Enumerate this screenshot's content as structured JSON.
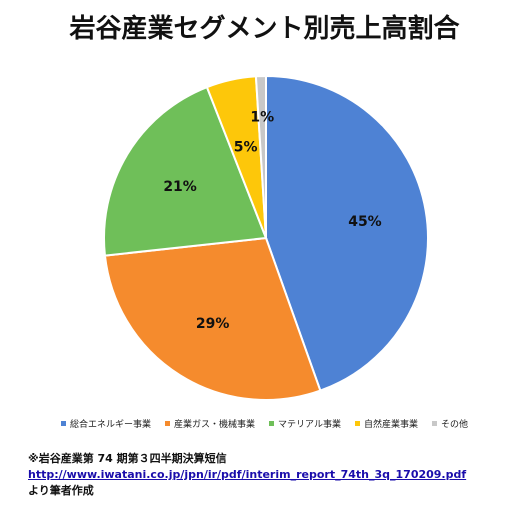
{
  "chart_data": {
    "type": "pie",
    "title": "岩谷産業セグメント別売上高割合",
    "categories": [
      "総合エネルギー事業",
      "産業ガス・機械事業",
      "マテリアル事業",
      "自然産業事業",
      "その他"
    ],
    "values": [
      45,
      29,
      21,
      5,
      1
    ],
    "labels": [
      "45%",
      "29%",
      "21%",
      "5%",
      "1%"
    ],
    "colors": [
      "#4E82D4",
      "#F58B2D",
      "#6FBF59",
      "#FDC70A",
      "#C8C8C8"
    ],
    "legend": "bottom"
  },
  "source": {
    "line1": "※岩谷産業第 74 期第３四半期決算短信",
    "url": "http://www.iwatani.co.jp/jpn/ir/pdf/interim_report_74th_3q_170209.pdf",
    "line3": "より筆者作成"
  }
}
